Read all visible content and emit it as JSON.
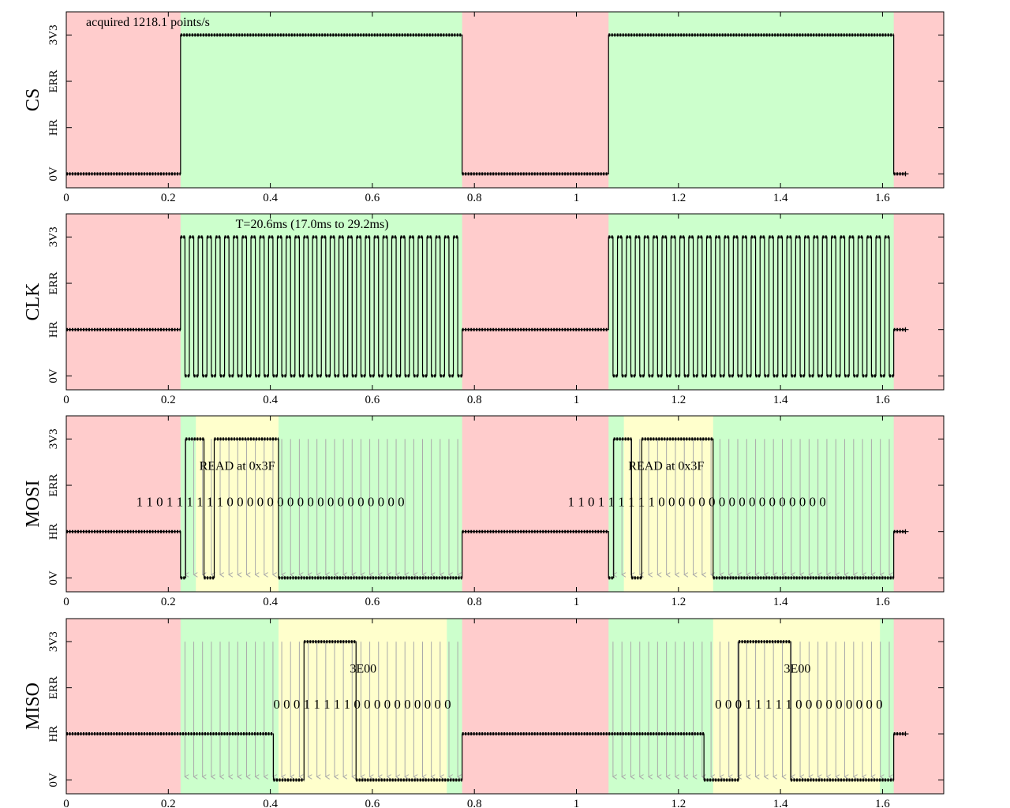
{
  "chart_data": {
    "type": "line",
    "x_ticks": [
      "0",
      "0.2",
      "0.4",
      "0.6",
      "0.8",
      "1",
      "1.2",
      "1.4",
      "1.6"
    ],
    "x_tick_values": [
      0,
      0.2,
      0.4,
      0.6,
      0.8,
      1,
      1.2,
      1.4,
      1.6
    ],
    "xlim": [
      0,
      1.72
    ],
    "y_levels": [
      "0V",
      "HR",
      "ERR",
      "3V3"
    ],
    "ylim": [
      -0.3,
      3.5
    ],
    "colors": {
      "idle_bg": "#ffcccc",
      "active_bg": "#ccffcc",
      "bit_bg": "#ffffcc",
      "trace": "#000000",
      "clock_arrow": "#aaaaaa"
    },
    "transactions": [
      {
        "start": 0.224,
        "end": 0.776
      },
      {
        "start": 1.063,
        "end": 1.622
      }
    ],
    "capture_end": 1.645,
    "series": [
      {
        "name": "CS",
        "annotation_top": "acquired 1218.1 points/s",
        "points": [
          [
            0.0,
            0
          ],
          [
            0.224,
            0
          ],
          [
            0.224,
            3
          ],
          [
            0.776,
            3
          ],
          [
            0.776,
            0
          ],
          [
            1.063,
            0
          ],
          [
            1.063,
            3
          ],
          [
            1.622,
            3
          ],
          [
            1.622,
            0
          ],
          [
            1.645,
            0
          ]
        ]
      },
      {
        "name": "CLK",
        "annotation_top": "T=20.6ms (17.0ms to 29.2ms)",
        "idle_level": 1,
        "clock": [
          {
            "start": 0.224,
            "end": 0.776,
            "cycles": 32
          },
          {
            "start": 1.063,
            "end": 1.622,
            "cycles": 32
          }
        ]
      },
      {
        "name": "MOSI",
        "points": [
          [
            0.0,
            1
          ],
          [
            0.224,
            1
          ],
          [
            0.224,
            0
          ],
          [
            0.234,
            0
          ],
          [
            0.234,
            3
          ],
          [
            0.27,
            3
          ],
          [
            0.27,
            0
          ],
          [
            0.29,
            0
          ],
          [
            0.29,
            3
          ],
          [
            0.416,
            3
          ],
          [
            0.416,
            0
          ],
          [
            0.776,
            0
          ],
          [
            0.776,
            1
          ],
          [
            1.063,
            1
          ],
          [
            1.063,
            0
          ],
          [
            1.073,
            0
          ],
          [
            1.073,
            3
          ],
          [
            1.108,
            3
          ],
          [
            1.108,
            0
          ],
          [
            1.128,
            0
          ],
          [
            1.128,
            3
          ],
          [
            1.268,
            3
          ],
          [
            1.268,
            0
          ],
          [
            1.622,
            0
          ],
          [
            1.622,
            1
          ],
          [
            1.645,
            1
          ]
        ],
        "decoded": [
          {
            "label": "READ at 0x3F",
            "x": 0.335,
            "bits": "1 1 0 1 1 1 1 1 1 0 0 0 0 0 0 0 0 0 0 0 0 0 0 0 0 0 0",
            "bits_x": 0.4,
            "hl_start": 0.254,
            "hl_end": 0.416
          },
          {
            "label": "READ at 0x3F",
            "x": 1.176,
            "bits": "1 1 0 1 1 1 1 1 1 0 0 0 0 0 0 0 0 0 0 0 0 0 0 0 0 0",
            "bits_x": 1.236,
            "hl_start": 1.093,
            "hl_end": 1.268
          }
        ]
      },
      {
        "name": "MISO",
        "points": [
          [
            0.0,
            1
          ],
          [
            0.406,
            1
          ],
          [
            0.406,
            0
          ],
          [
            0.466,
            0
          ],
          [
            0.466,
            3
          ],
          [
            0.568,
            3
          ],
          [
            0.568,
            0
          ],
          [
            0.776,
            0
          ],
          [
            0.776,
            1
          ],
          [
            1.063,
            1
          ],
          [
            1.25,
            1
          ],
          [
            1.25,
            0
          ],
          [
            1.318,
            0
          ],
          [
            1.318,
            3
          ],
          [
            1.42,
            3
          ],
          [
            1.42,
            0
          ],
          [
            1.622,
            0
          ],
          [
            1.622,
            1
          ],
          [
            1.645,
            1
          ]
        ],
        "decoded": [
          {
            "label": "3E00",
            "x": 0.582,
            "bits": "0 0 0 1 1 1 1 1 0 0 0 0 0 0 0 0 0 0",
            "bits_x": 0.58,
            "hl_start": 0.416,
            "hl_end": 0.746
          },
          {
            "label": "3E00",
            "x": 1.433,
            "bits": "0   0 0 1 1 1 1 1 0 0 0 0 0 0 0 0 0",
            "bits_x": 1.436,
            "hl_start": 1.268,
            "hl_end": 1.595
          }
        ]
      }
    ]
  }
}
